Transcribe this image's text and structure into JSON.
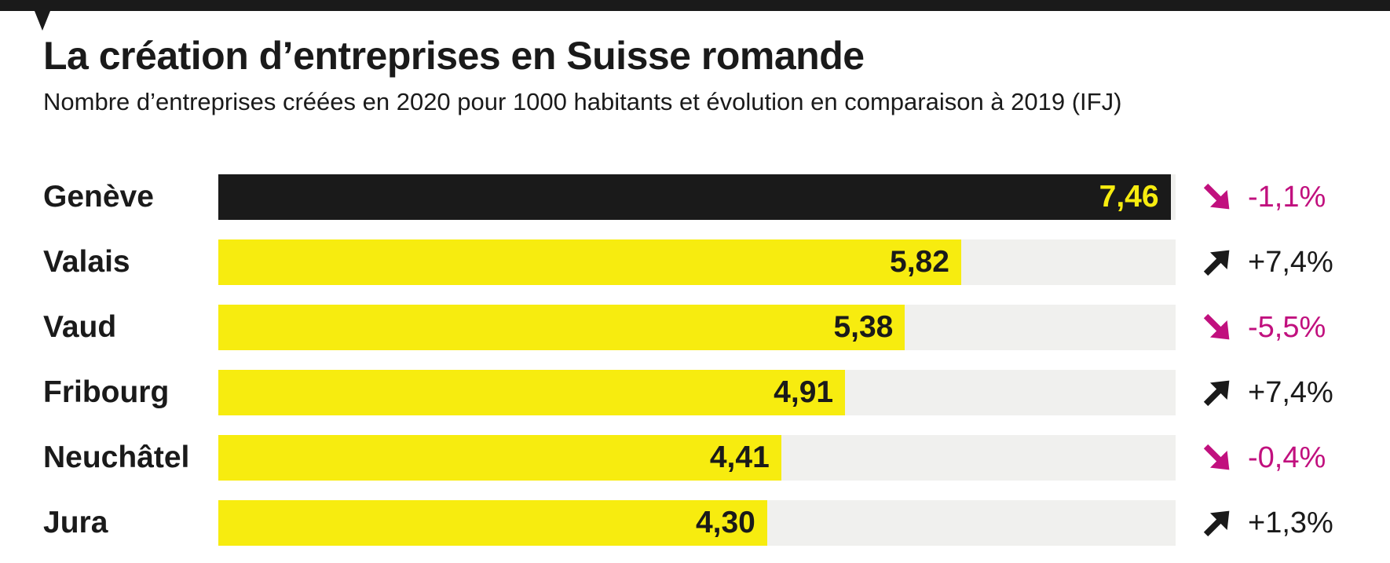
{
  "header": {
    "title": "La création d’entreprises en Suisse romande",
    "subtitle": "Nombre d’entreprises créées en 2020 pour 1000 habitants et évolution en comparaison à 2019 (IFJ)"
  },
  "colors": {
    "ink": "#1a1a1a",
    "yellow": "#f7ec0f",
    "track": "#f0f0ee",
    "pink": "#c1107e"
  },
  "chart_data": {
    "type": "bar",
    "orientation": "horizontal",
    "title": "La création d’entreprises en Suisse romande",
    "subtitle": "Nombre d’entreprises créées en 2020 pour 1000 habitants et évolution en comparaison à 2019 (IFJ)",
    "xlim": [
      0,
      7.5
    ],
    "grid": false,
    "legend": false,
    "categories": [
      "Genève",
      "Valais",
      "Vaud",
      "Fribourg",
      "Neuchâtel",
      "Jura"
    ],
    "values": [
      7.46,
      5.82,
      5.38,
      4.91,
      4.41,
      4.3
    ],
    "changes_vs_2019": [
      -1.1,
      7.4,
      -5.5,
      7.4,
      -0.4,
      1.3
    ],
    "rows": [
      {
        "label": "Genève",
        "value": 7.46,
        "value_label": "7,46",
        "change": "-1,1%",
        "direction": "down",
        "highlight": true
      },
      {
        "label": "Valais",
        "value": 5.82,
        "value_label": "5,82",
        "change": "+7,4%",
        "direction": "up",
        "highlight": false
      },
      {
        "label": "Vaud",
        "value": 5.38,
        "value_label": "5,38",
        "change": "-5,5%",
        "direction": "down",
        "highlight": false
      },
      {
        "label": "Fribourg",
        "value": 4.91,
        "value_label": "4,91",
        "change": "+7,4%",
        "direction": "up",
        "highlight": false
      },
      {
        "label": "Neuchâtel",
        "value": 4.41,
        "value_label": "4,41",
        "change": "-0,4%",
        "direction": "down",
        "highlight": false
      },
      {
        "label": "Jura",
        "value": 4.3,
        "value_label": "4,30",
        "change": "+1,3%",
        "direction": "up",
        "highlight": false
      }
    ]
  }
}
